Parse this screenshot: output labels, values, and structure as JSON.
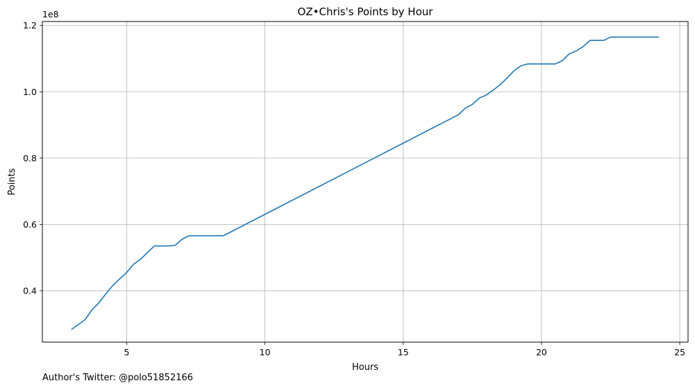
{
  "chart_data": {
    "type": "line",
    "title": "OZ•Chris's Points by Hour",
    "xlabel": "Hours",
    "ylabel": "Points",
    "y_offset_label": "1e8",
    "y_scale": 100000000,
    "xlim": [
      1.95,
      25.3
    ],
    "ylim": [
      0.245,
      1.212
    ],
    "x_ticks": [
      5,
      10,
      15,
      20,
      25
    ],
    "x_tick_labels": [
      "5",
      "10",
      "15",
      "20",
      "25"
    ],
    "y_ticks": [
      0.4,
      0.6,
      0.8,
      1.0,
      1.2
    ],
    "y_tick_labels": [
      "0.4",
      "0.6",
      "0.8",
      "1.0",
      "1.2"
    ],
    "grid": true,
    "line_color": "#1f77b4",
    "series": [
      {
        "x": [
          3.0,
          3.5,
          3.75,
          4.0,
          4.25,
          4.5,
          4.75,
          5.0,
          5.25,
          5.5,
          5.75,
          6.0,
          6.25,
          6.5,
          6.75,
          7.0,
          7.25,
          7.5,
          8.0,
          8.5,
          17.0,
          17.25,
          17.5,
          17.75,
          18.0,
          18.25,
          18.5,
          18.75,
          19.0,
          19.25,
          19.5,
          20.0,
          20.5,
          20.75,
          21.0,
          21.25,
          21.5,
          21.75,
          22.0,
          22.25,
          22.5,
          23.0,
          24.25
        ],
        "y": [
          0.283,
          0.313,
          0.343,
          0.364,
          0.391,
          0.416,
          0.436,
          0.455,
          0.48,
          0.495,
          0.515,
          0.535,
          0.535,
          0.535,
          0.537,
          0.555,
          0.566,
          0.566,
          0.566,
          0.566,
          0.931,
          0.951,
          0.962,
          0.981,
          0.99,
          1.005,
          1.021,
          1.041,
          1.063,
          1.078,
          1.084,
          1.084,
          1.084,
          1.094,
          1.114,
          1.123,
          1.136,
          1.155,
          1.155,
          1.155,
          1.165,
          1.165,
          1.165
        ]
      }
    ]
  },
  "footnote": "Author's Twitter: @polo51852166"
}
